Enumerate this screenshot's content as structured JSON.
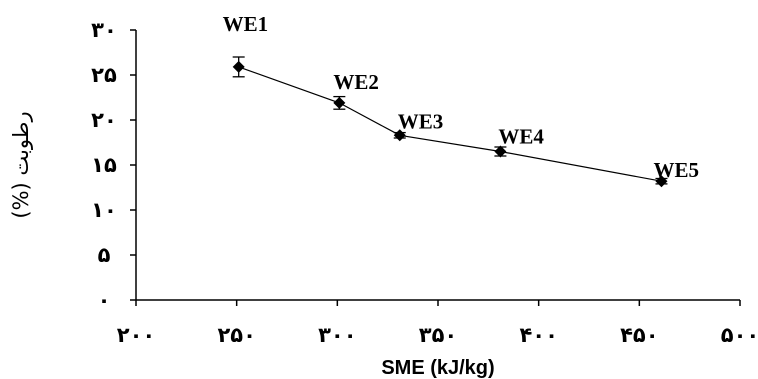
{
  "chart_data": {
    "type": "scatter",
    "xlabel": "SME (kJ/kg)",
    "ylabel": "رطوبت (%)",
    "xlim": [
      200,
      500
    ],
    "ylim": [
      0,
      30
    ],
    "xticks": [
      200,
      250,
      300,
      350,
      400,
      450,
      500
    ],
    "xtick_labels": [
      "۲۰۰",
      "۲۵۰",
      "۳۰۰",
      "۳۵۰",
      "۴۰۰",
      "۴۵۰",
      "۵۰۰"
    ],
    "yticks": [
      0,
      5,
      10,
      15,
      20,
      25,
      30
    ],
    "ytick_labels": [
      "۰",
      "۵",
      "۱۰",
      "۱۵",
      "۲۰",
      "۲۵",
      "۳۰"
    ],
    "grid": false,
    "series": [
      {
        "points": [
          {
            "label": "WE1",
            "x": 251,
            "y": 25.9,
            "err": 1.1
          },
          {
            "label": "WE2",
            "x": 301,
            "y": 21.9,
            "err": 0.7
          },
          {
            "label": "WE3",
            "x": 331,
            "y": 18.3,
            "err": 0.3
          },
          {
            "label": "WE4",
            "x": 381,
            "y": 16.5,
            "err": 0.5
          },
          {
            "label": "WE5",
            "x": 461,
            "y": 13.2,
            "err": 0.3
          }
        ]
      }
    ]
  }
}
